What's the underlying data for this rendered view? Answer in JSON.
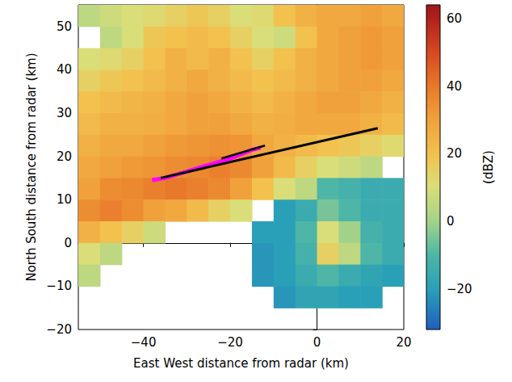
{
  "chart_data": {
    "type": "heatmap",
    "xlabel": "East West distance from radar (km)",
    "ylabel": "North South distance from radar (km)",
    "xlim": [
      -55,
      20
    ],
    "ylim": [
      -20,
      55
    ],
    "xticks": [
      {
        "value": -40,
        "label": "−40"
      },
      {
        "value": -20,
        "label": "−20"
      },
      0,
      20
    ],
    "yticks": [
      {
        "value": -20,
        "label": "−20"
      },
      {
        "value": -10,
        "label": "−10"
      },
      0,
      10,
      20,
      30,
      40,
      50
    ],
    "grid": false,
    "x": [
      -52.5,
      -47.5,
      -42.5,
      -37.5,
      -32.5,
      -27.5,
      -22.5,
      -17.5,
      -12.5,
      -7.5,
      -2.5,
      2.5,
      7.5,
      12.5,
      17.5
    ],
    "y": [
      52.5,
      47.5,
      42.5,
      37.5,
      32.5,
      27.5,
      22.5,
      17.5,
      12.5,
      7.5,
      2.5,
      -2.5,
      -7.5,
      -12.5,
      -17.5
    ],
    "values": [
      [
        5,
        8,
        10,
        12,
        15,
        18,
        15,
        10,
        12,
        20,
        25,
        28,
        28,
        30,
        28
      ],
      [
        null,
        5,
        10,
        18,
        20,
        22,
        20,
        15,
        10,
        8,
        20,
        28,
        30,
        32,
        30
      ],
      [
        10,
        12,
        15,
        20,
        25,
        22,
        25,
        20,
        15,
        20,
        25,
        28,
        30,
        32,
        30
      ],
      [
        15,
        18,
        20,
        22,
        25,
        28,
        25,
        22,
        20,
        22,
        25,
        28,
        30,
        30,
        28
      ],
      [
        20,
        22,
        24,
        25,
        28,
        30,
        28,
        25,
        22,
        25,
        28,
        30,
        30,
        28,
        25
      ],
      [
        22,
        25,
        25,
        26,
        28,
        30,
        30,
        28,
        25,
        26,
        28,
        28,
        28,
        25,
        22
      ],
      [
        25,
        28,
        28,
        30,
        32,
        33,
        34,
        33,
        28,
        25,
        22,
        20,
        18,
        15,
        12
      ],
      [
        28,
        30,
        32,
        33,
        35,
        36,
        38,
        36,
        30,
        22,
        15,
        10,
        8,
        5,
        null
      ],
      [
        30,
        35,
        36,
        38,
        40,
        38,
        36,
        30,
        20,
        10,
        5,
        -10,
        -12,
        -15,
        -15
      ],
      [
        35,
        38,
        35,
        30,
        28,
        22,
        15,
        10,
        null,
        -20,
        -15,
        -5,
        -10,
        -15,
        -15
      ],
      [
        25,
        20,
        15,
        8,
        null,
        null,
        null,
        null,
        -20,
        -20,
        -10,
        10,
        0,
        -12,
        -15
      ],
      [
        10,
        5,
        null,
        null,
        null,
        null,
        null,
        null,
        -22,
        -20,
        -12,
        15,
        5,
        -10,
        -15
      ],
      [
        5,
        null,
        null,
        null,
        null,
        null,
        null,
        null,
        -22,
        -20,
        -15,
        -10,
        -15,
        -18,
        -20
      ],
      [
        null,
        null,
        null,
        null,
        null,
        null,
        null,
        null,
        null,
        -22,
        -18,
        -18,
        -20,
        -20,
        null
      ],
      [
        null,
        null,
        null,
        null,
        null,
        null,
        null,
        null,
        null,
        null,
        null,
        null,
        null,
        null,
        null
      ]
    ],
    "colorbar": {
      "label": "(dBZ)",
      "range": [
        -32,
        64
      ],
      "ticks": [
        {
          "value": -20,
          "label": "−20"
        },
        0,
        20,
        40,
        60
      ]
    },
    "lines": [
      {
        "color": "#ff00ff",
        "x": [
          -38,
          -35,
          -30,
          -25,
          -20,
          -15,
          -13
        ],
        "y": [
          14.5,
          15,
          16.5,
          18,
          19.5,
          21.5,
          22
        ]
      },
      {
        "color": "#000000",
        "x": [
          -22,
          -12
        ],
        "y": [
          19.5,
          22.5
        ]
      },
      {
        "color": "#000000",
        "marker": "arrow",
        "x": [
          -36,
          14
        ],
        "y": [
          15,
          26.5
        ]
      }
    ]
  }
}
